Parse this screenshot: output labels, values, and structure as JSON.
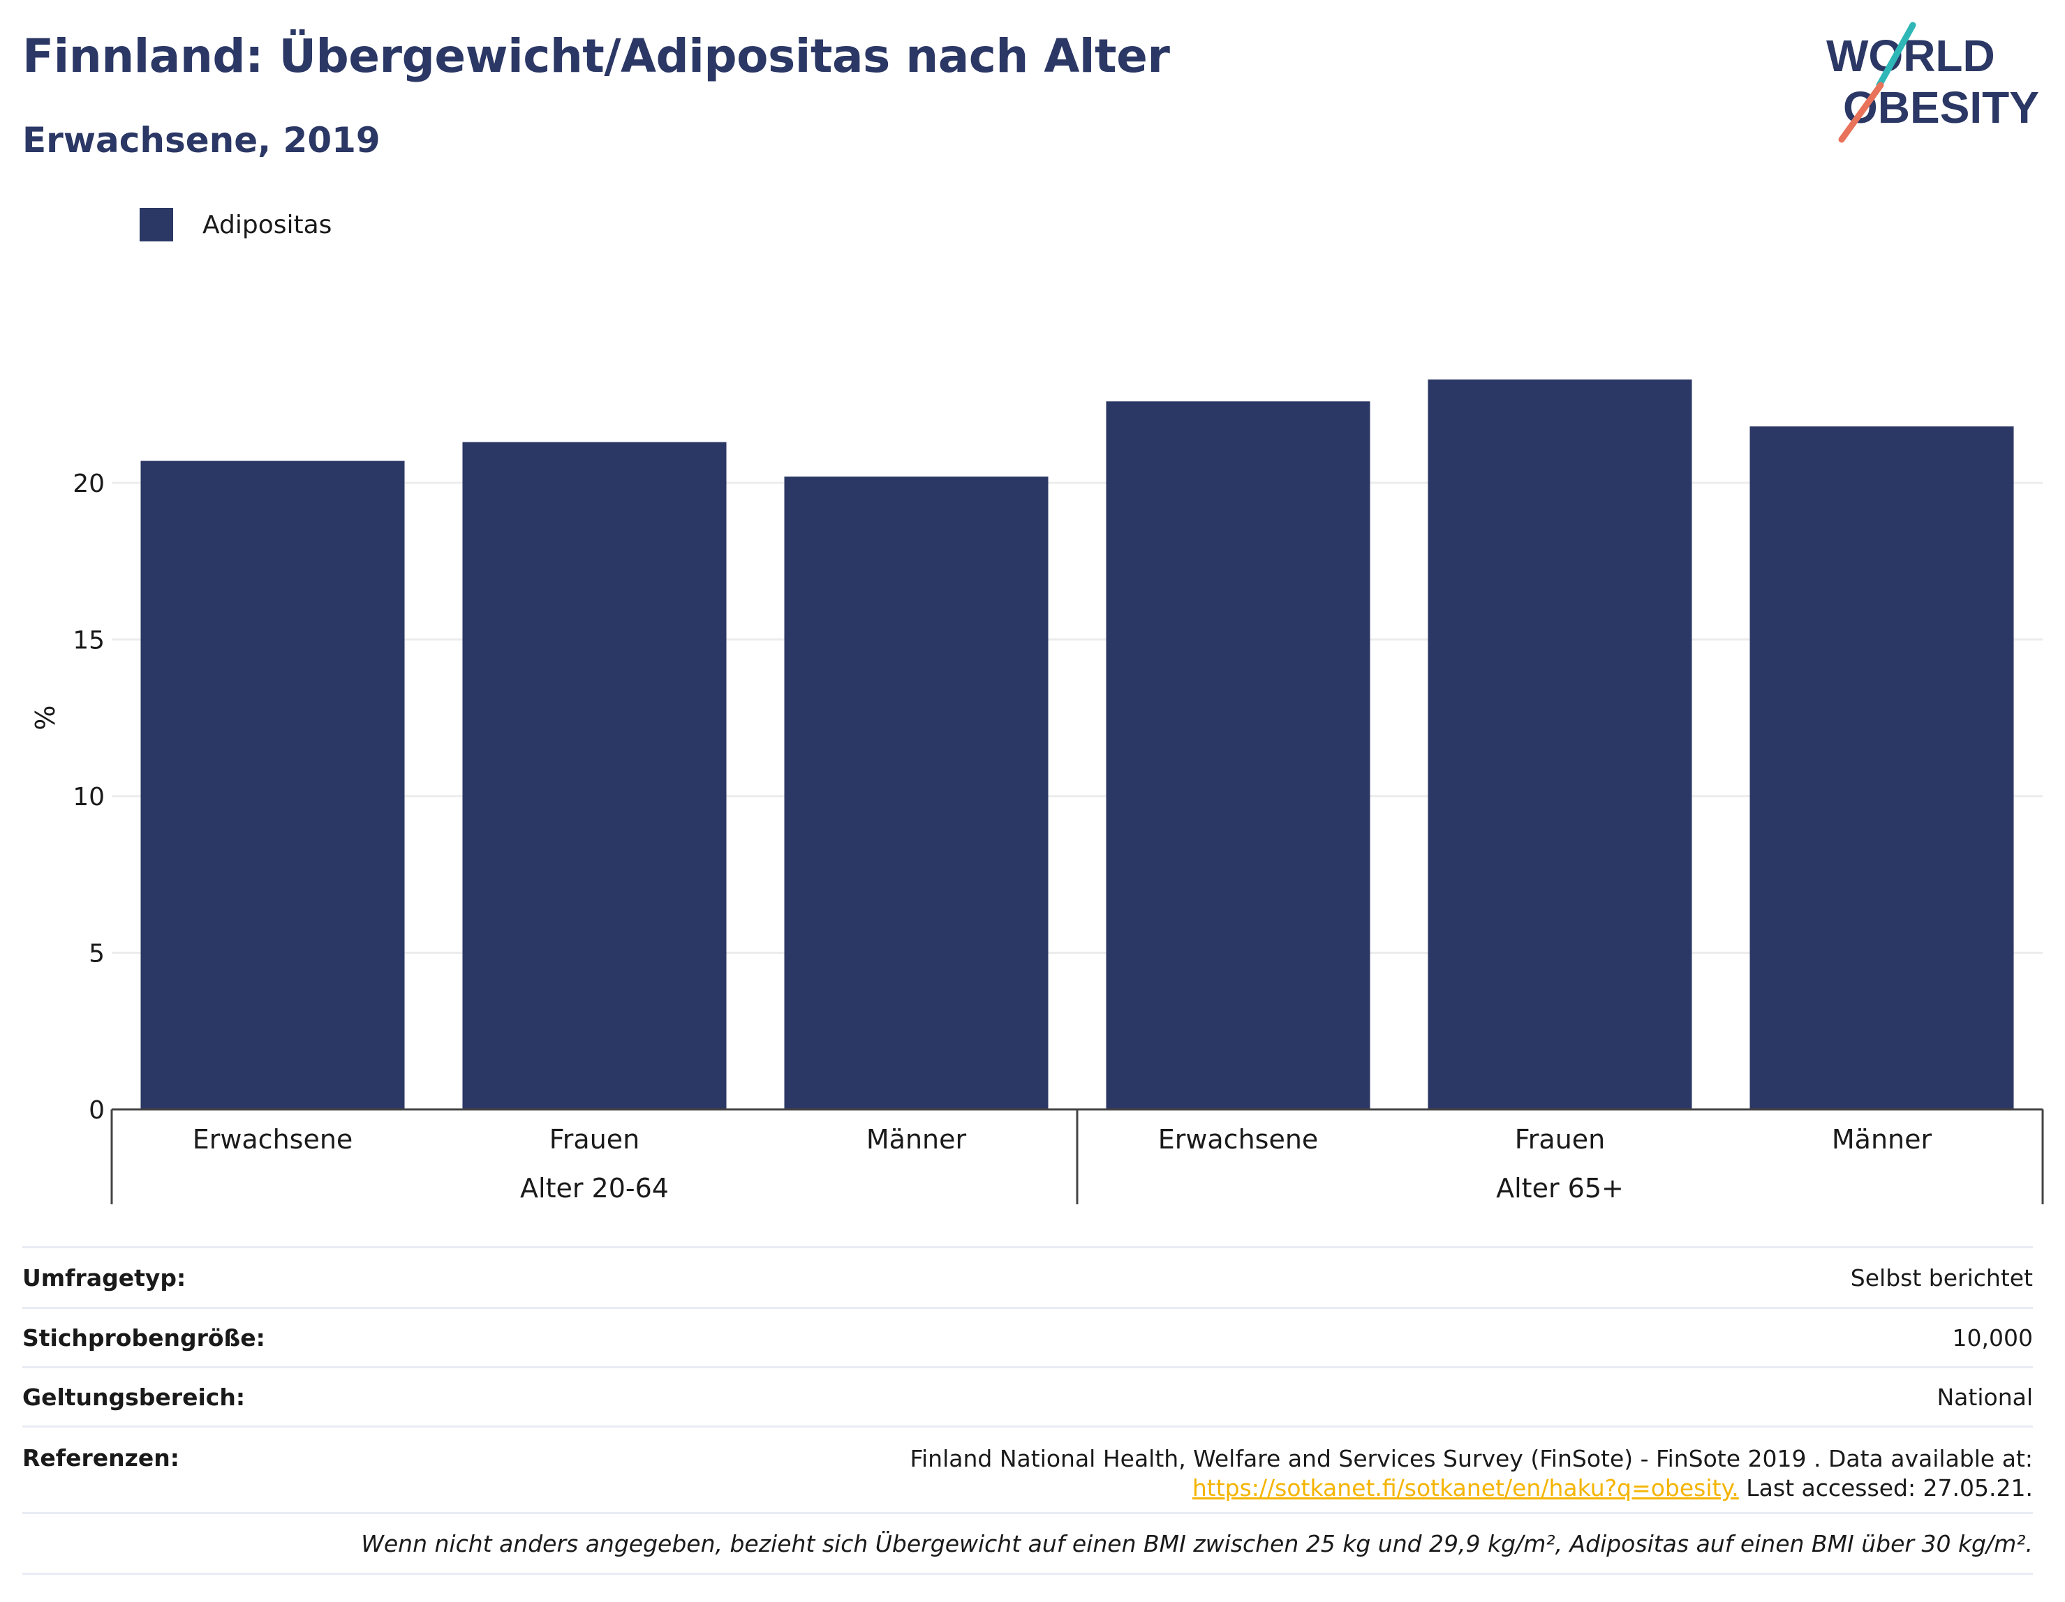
{
  "title": "Finnland: Übergewicht/Adipositas nach Alter",
  "subtitle": "Erwachsene, 2019",
  "logo": {
    "line1": "WORLD",
    "line2": "OBESITY",
    "color": "#2b3764",
    "accent_teal": "#2fb7b7",
    "accent_coral": "#e8735a"
  },
  "chart_data": {
    "type": "bar",
    "categories": [
      "Erwachsene",
      "Frauen",
      "Männer",
      "Erwachsene",
      "Frauen",
      "Männer"
    ],
    "groups": [
      {
        "label": "Alter 20-64",
        "categories": [
          "Erwachsene",
          "Frauen",
          "Männer"
        ]
      },
      {
        "label": "Alter 65+",
        "categories": [
          "Erwachsene",
          "Frauen",
          "Männer"
        ]
      }
    ],
    "series": [
      {
        "name": "Adipositas",
        "color": "#2b3764",
        "values": [
          20.7,
          21.3,
          20.2,
          22.6,
          23.3,
          21.8
        ]
      }
    ],
    "ylabel": "%",
    "xlabel": "",
    "ylim": [
      0,
      25
    ],
    "yticks": [
      0,
      5,
      10,
      15,
      20
    ],
    "grid": true,
    "legend": "top-left"
  },
  "info": {
    "survey_label": "Umfragetyp:",
    "survey_value": "Selbst berichtet",
    "sample_label": "Stichprobengröße:",
    "sample_value": "10,000",
    "scope_label": "Geltungsbereich:",
    "scope_value": "National",
    "ref_label": "Referenzen:",
    "ref_text1": "Finland National Health, Welfare and Services Survey (FinSote) - FinSote 2019 . Data available at:",
    "ref_link": "https://sotkanet.fi/sotkanet/en/haku?q=obesity.",
    "ref_text2": " Last accessed: 27.05.21.",
    "note": "Wenn nicht anders angegeben, bezieht sich Übergewicht auf einen BMI zwischen 25 kg und 29,9 kg/m², Adipositas auf einen BMI über 30 kg/m²."
  }
}
